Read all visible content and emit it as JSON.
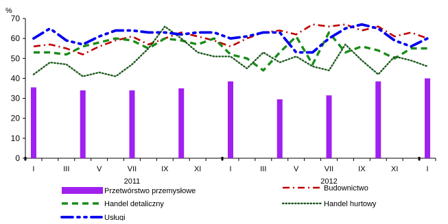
{
  "chart_data": {
    "type": "line",
    "ylabel": "%",
    "ylim": [
      0,
      70
    ],
    "yticks": [
      0,
      10,
      20,
      30,
      40,
      50,
      60,
      70
    ],
    "grid": false,
    "legend_position": "bottom",
    "x_tick_labels": [
      "I",
      "III",
      "V",
      "VII",
      "IX",
      "XI",
      "I",
      "III",
      "V",
      "VII",
      "IX",
      "XI",
      "I"
    ],
    "year_labels": [
      {
        "label": "2011",
        "month_index": 6.5
      },
      {
        "label": "2012",
        "month_index": 18.5
      }
    ],
    "months_count": 25,
    "bars": {
      "name": "Przetwórstwo przemysłowe",
      "color": "#a020f0",
      "points": [
        {
          "month_index": 0,
          "value": 35.5
        },
        {
          "month_index": 3,
          "value": 34
        },
        {
          "month_index": 6,
          "value": 34
        },
        {
          "month_index": 9,
          "value": 35
        },
        {
          "month_index": 12,
          "value": 38.5
        },
        {
          "month_index": 15,
          "value": 29.5
        },
        {
          "month_index": 18,
          "value": 31.5
        },
        {
          "month_index": 21,
          "value": 38.5
        },
        {
          "month_index": 24,
          "value": 40
        }
      ]
    },
    "series": [
      {
        "name": "Budownictwo",
        "color": "#c00000",
        "style": "dashdot",
        "values": [
          56,
          57,
          55,
          52,
          56,
          59,
          61,
          57,
          60,
          63,
          61,
          59,
          56,
          60,
          63,
          64,
          62,
          67,
          66,
          67,
          64,
          66,
          61,
          63,
          60
        ]
      },
      {
        "name": "Handel detaliczny",
        "color": "#1a8c1a",
        "style": "dash",
        "values": [
          53,
          53,
          52,
          56,
          58,
          60,
          59,
          55,
          60,
          59,
          57,
          60,
          52,
          50,
          44,
          53,
          61,
          47,
          63,
          53,
          56,
          54,
          50,
          55,
          55
        ]
      },
      {
        "name": "Handel hurtowy",
        "color": "#1e5a1e",
        "style": "dot",
        "values": [
          42,
          48,
          47,
          41,
          43,
          41,
          47,
          55,
          66,
          60,
          53,
          51,
          51,
          45,
          53,
          48,
          51,
          46,
          44,
          57,
          49,
          42,
          51,
          49,
          46
        ]
      },
      {
        "name": "Usługi",
        "color": "#0000ee",
        "style": "dashdotdot",
        "values": [
          60,
          65,
          59,
          57,
          61,
          64,
          64,
          63,
          63,
          62,
          63,
          63,
          60,
          61,
          63,
          63,
          53,
          53,
          60,
          65,
          67,
          65,
          59,
          56,
          60
        ]
      }
    ],
    "legend": [
      {
        "name": "Przetwórstwo przemysłowe",
        "kind": "bar",
        "color": "#a020f0"
      },
      {
        "name": "Budownictwo",
        "kind": "line",
        "style": "dashdot",
        "color": "#c00000"
      },
      {
        "name": "Handel detaliczny",
        "kind": "line",
        "style": "dash",
        "color": "#1a8c1a"
      },
      {
        "name": "Handel hurtowy",
        "kind": "line",
        "style": "dot",
        "color": "#1e5a1e"
      },
      {
        "name": "Usługi",
        "kind": "line",
        "style": "dashdotdot",
        "color": "#0000ee"
      }
    ]
  }
}
